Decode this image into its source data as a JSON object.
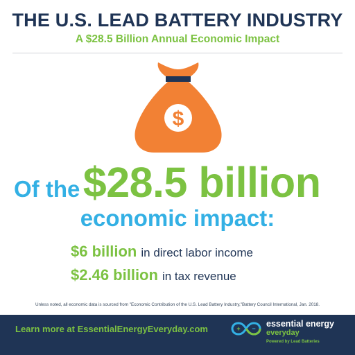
{
  "header": {
    "title": "THE U.S. LEAD BATTERY INDUSTRY",
    "subtitle": "A $28.5 Billion Annual Economic Impact"
  },
  "icon": {
    "name": "money-bag-icon",
    "bag_color": "#f28134",
    "tie_color": "#1f3455",
    "symbol": "$"
  },
  "headline": {
    "prefix": "Of the",
    "amount": "$28.5 billion",
    "suffix": "economic impact:"
  },
  "stats": [
    {
      "amount": "$6 billion",
      "description": "in direct labor income"
    },
    {
      "amount": "$2.46 billion",
      "description": "in tax revenue"
    }
  ],
  "footnote": "Unless noted, all economic data is sourced from \"Economic Contribution of the U.S. Lead Battery Industry,\"Battery Council International, Jan. 2018.",
  "footer": {
    "learn_more": "Learn more at EssentialEnergyEveryday.com",
    "brand_name": "essential energy",
    "brand_sub": "everyday",
    "brand_tagline": "Powered by Lead Batteries",
    "logo_icon": "infinity-battery-icon"
  },
  "colors": {
    "navy": "#1f3455",
    "green": "#7cc242",
    "blue": "#33b0e4",
    "orange": "#f28134"
  }
}
